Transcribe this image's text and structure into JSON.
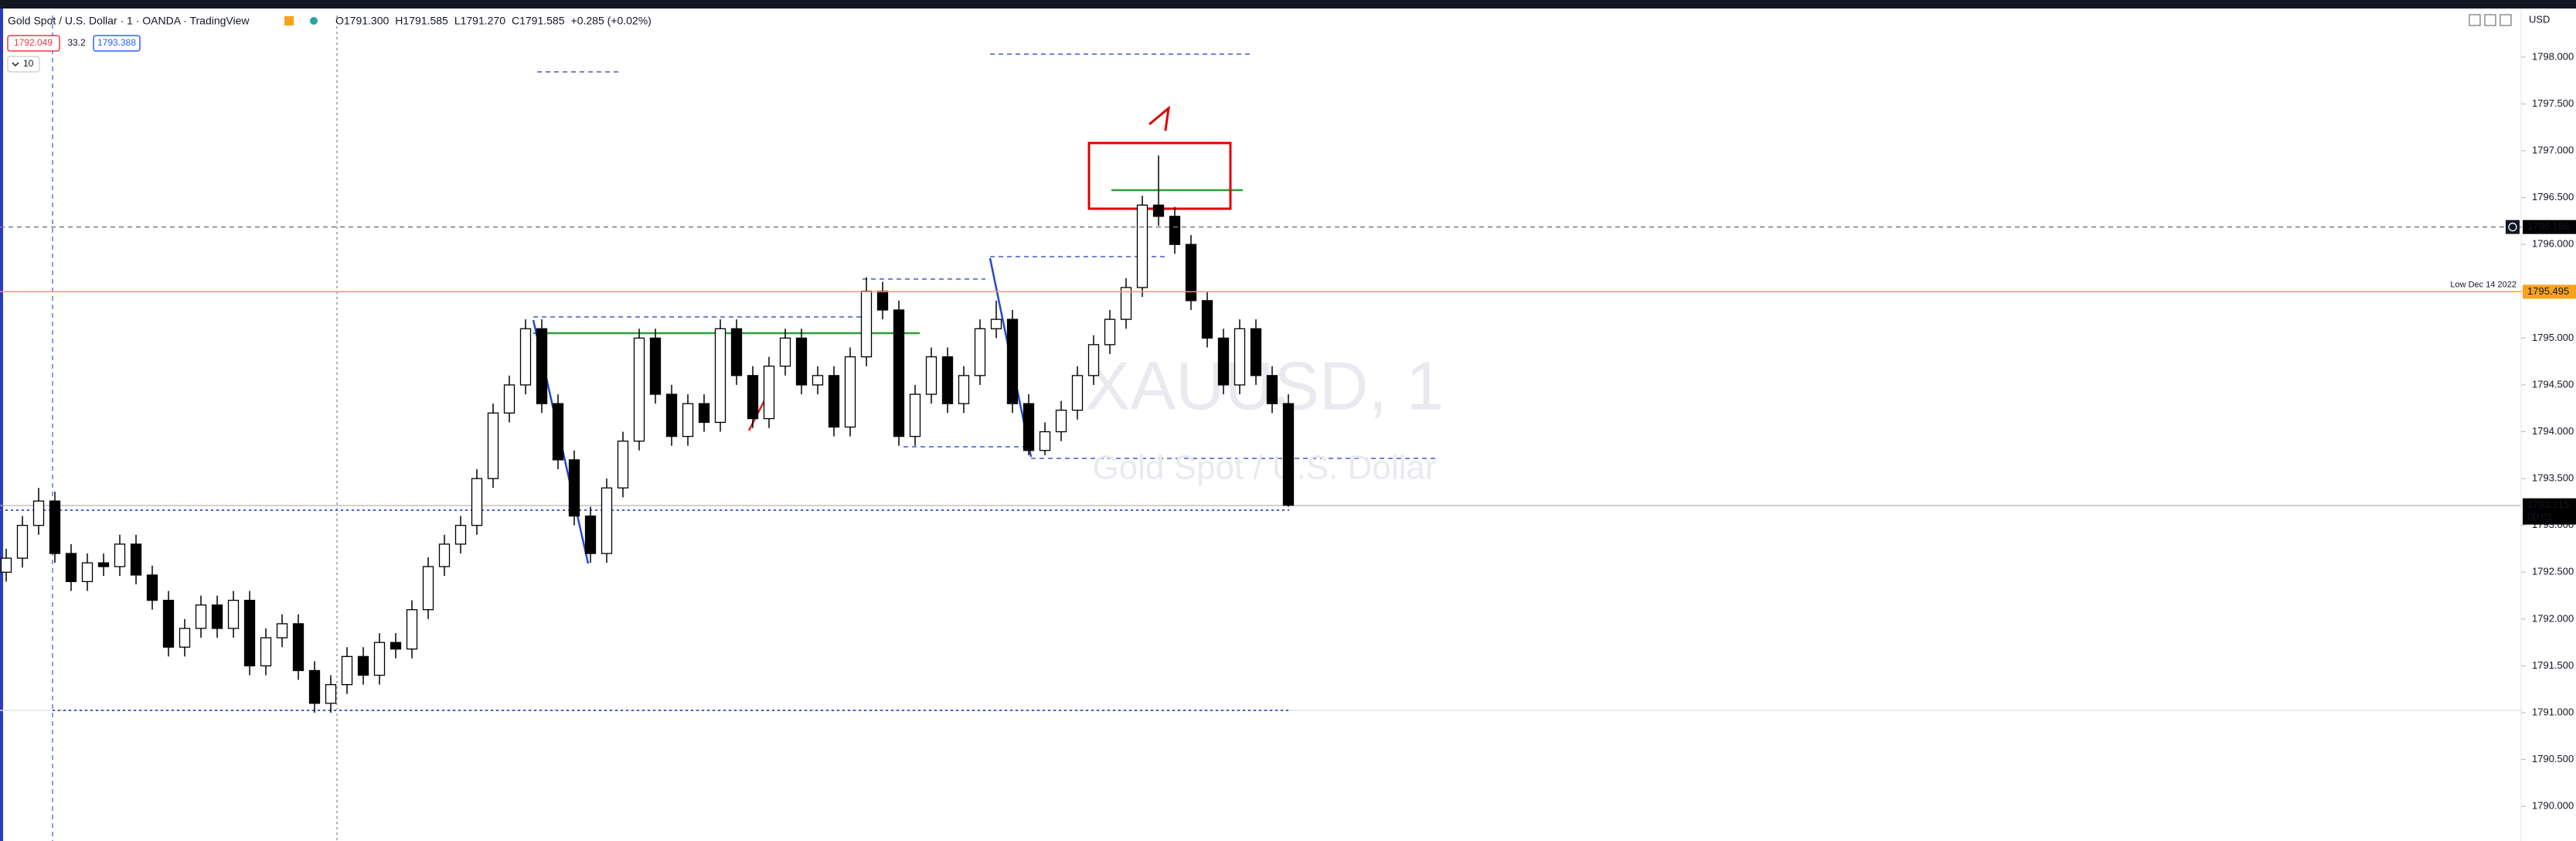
{
  "header": {
    "symbol_title": "Gold Spot / U.S. Dollar · 1 · OANDA · TradingView",
    "ohlc": [
      "O1791.300",
      "H1791.585",
      "L1791.270",
      "C1791.585",
      "+0.285 (+0.02%)"
    ],
    "sell_price": "1792.049",
    "spread": "33.2",
    "buy_price": "1793.388",
    "indicator_count": "10",
    "currency": "USD"
  },
  "chart_data": {
    "type": "candlestick",
    "watermark": "XAUUSD, 1",
    "watermark_subtitle": "Gold Spot / U.S. Dollar",
    "annotation": "1",
    "up_color": "#ffffff",
    "down_color": "#000000",
    "open": [
      1792.5,
      1792.65,
      1793.0,
      1793.26,
      1792.7,
      1792.4,
      1792.6,
      1792.56,
      1792.8,
      1792.47,
      1792.2,
      1791.7,
      1791.9,
      1792.15,
      1791.9,
      1792.2,
      1791.5,
      1791.8,
      1791.95,
      1791.45,
      1791.1,
      1791.3,
      1791.6,
      1791.4,
      1791.75,
      1791.68,
      1792.1,
      1792.56,
      1792.8,
      1793.0,
      1793.5,
      1794.2,
      1794.5,
      1795.1,
      1794.3,
      1793.7,
      1793.1,
      1792.7,
      1793.4,
      1793.9,
      1795.0,
      1794.4,
      1793.95,
      1794.3,
      1794.1,
      1795.1,
      1794.6,
      1794.14,
      1794.7,
      1795.0,
      1794.5,
      1794.6,
      1794.05,
      1794.8,
      1795.5,
      1795.3,
      1793.95,
      1794.4,
      1794.8,
      1794.3,
      1794.6,
      1795.1,
      1795.2,
      1794.3,
      1793.8,
      1794.0,
      1794.23,
      1794.6,
      1794.93,
      1795.2,
      1795.54,
      1796.42,
      1796.3,
      1796.0,
      1795.4,
      1795.0,
      1794.5,
      1795.1,
      1794.6,
      1794.3
    ],
    "high": [
      1792.75,
      1793.1,
      1793.4,
      1793.36,
      1792.8,
      1792.7,
      1792.7,
      1792.9,
      1792.9,
      1792.57,
      1792.3,
      1792.0,
      1792.25,
      1792.25,
      1792.3,
      1792.3,
      1791.9,
      1792.05,
      1792.05,
      1791.55,
      1791.4,
      1791.7,
      1791.7,
      1791.85,
      1791.85,
      1792.2,
      1792.66,
      1792.9,
      1793.1,
      1793.6,
      1794.3,
      1794.6,
      1795.2,
      1795.2,
      1794.4,
      1793.8,
      1793.2,
      1793.5,
      1794.0,
      1795.1,
      1795.1,
      1794.5,
      1794.4,
      1794.4,
      1795.2,
      1795.2,
      1794.7,
      1794.8,
      1795.1,
      1795.1,
      1794.7,
      1794.7,
      1794.9,
      1795.65,
      1795.6,
      1795.4,
      1794.5,
      1794.9,
      1794.9,
      1794.7,
      1795.2,
      1795.4,
      1795.3,
      1794.4,
      1794.1,
      1794.33,
      1794.7,
      1795.03,
      1795.3,
      1795.64,
      1796.52,
      1796.95,
      1796.4,
      1796.1,
      1795.5,
      1795.1,
      1795.2,
      1795.2,
      1794.7,
      1794.4
    ],
    "low": [
      1792.4,
      1792.55,
      1792.9,
      1792.6,
      1792.3,
      1792.3,
      1792.46,
      1792.46,
      1792.37,
      1792.1,
      1791.6,
      1791.6,
      1791.8,
      1791.8,
      1791.8,
      1791.4,
      1791.4,
      1791.7,
      1791.35,
      1791.0,
      1791.0,
      1791.2,
      1791.3,
      1791.3,
      1791.58,
      1791.58,
      1792.0,
      1792.46,
      1792.7,
      1792.9,
      1793.4,
      1794.1,
      1794.4,
      1794.2,
      1793.6,
      1793.0,
      1792.6,
      1792.6,
      1793.3,
      1793.8,
      1794.3,
      1793.85,
      1793.85,
      1794.0,
      1794.0,
      1794.5,
      1794.04,
      1794.04,
      1794.6,
      1794.4,
      1794.4,
      1793.95,
      1793.95,
      1794.7,
      1795.2,
      1793.85,
      1793.85,
      1794.3,
      1794.2,
      1794.2,
      1794.5,
      1795.0,
      1794.2,
      1793.75,
      1793.75,
      1793.9,
      1794.13,
      1794.5,
      1794.83,
      1795.1,
      1795.44,
      1796.2,
      1795.9,
      1795.3,
      1794.9,
      1794.4,
      1794.4,
      1794.5,
      1794.2,
      1793.2
    ],
    "close": [
      1792.65,
      1793.0,
      1793.26,
      1792.7,
      1792.4,
      1792.6,
      1792.56,
      1792.8,
      1792.47,
      1792.2,
      1791.7,
      1791.9,
      1792.15,
      1791.9,
      1792.2,
      1791.5,
      1791.8,
      1791.95,
      1791.45,
      1791.1,
      1791.3,
      1791.6,
      1791.4,
      1791.75,
      1791.68,
      1792.1,
      1792.56,
      1792.8,
      1793.0,
      1793.5,
      1794.2,
      1794.5,
      1795.1,
      1794.3,
      1793.7,
      1793.1,
      1792.7,
      1793.4,
      1793.9,
      1795.0,
      1794.4,
      1793.95,
      1794.3,
      1794.1,
      1795.1,
      1794.6,
      1794.14,
      1794.7,
      1795.0,
      1794.5,
      1794.6,
      1794.05,
      1794.8,
      1795.5,
      1795.3,
      1793.95,
      1794.4,
      1794.8,
      1794.3,
      1794.6,
      1795.1,
      1795.2,
      1794.3,
      1793.8,
      1794.0,
      1794.23,
      1794.6,
      1794.93,
      1795.2,
      1795.54,
      1796.42,
      1796.3,
      1796.0,
      1795.4,
      1795.0,
      1794.5,
      1795.1,
      1794.6,
      1794.3,
      1793.215
    ],
    "countdown": "00:01",
    "price_lines": [
      {
        "price": 1796.186,
        "color": "#787b86",
        "label_bg": "#000000"
      },
      {
        "price": 1795.495,
        "color": "#f7a21b",
        "label_bg": "#f7a21b",
        "note": "Low Dec 14 2022"
      }
    ],
    "ylim": [
      1789.63,
      1798.61
    ],
    "yticks": [
      {
        "value": 1798,
        "label": "1798.000"
      },
      {
        "value": 1797.5,
        "label": "1797.500"
      },
      {
        "value": 1797,
        "label": "1797.000"
      },
      {
        "value": 1796.5,
        "label": "1796.500"
      },
      {
        "value": 1796,
        "label": "1796.000"
      },
      {
        "value": 1795.5,
        "label": "1795.500"
      },
      {
        "value": 1795,
        "label": "1795.000"
      },
      {
        "value": 1794.5,
        "label": "1794.500"
      },
      {
        "value": 1794,
        "label": "1794.000"
      },
      {
        "value": 1793.5,
        "label": "1793.500"
      },
      {
        "value": 1793,
        "label": "1793.000"
      },
      {
        "value": 1792.5,
        "label": "1792.500"
      },
      {
        "value": 1792,
        "label": "1792.000"
      },
      {
        "value": 1791.5,
        "label": "1791.500"
      },
      {
        "value": 1791,
        "label": "1791.000"
      },
      {
        "value": 1790.5,
        "label": "1790.500"
      },
      {
        "value": 1790,
        "label": "1790.000"
      }
    ]
  }
}
